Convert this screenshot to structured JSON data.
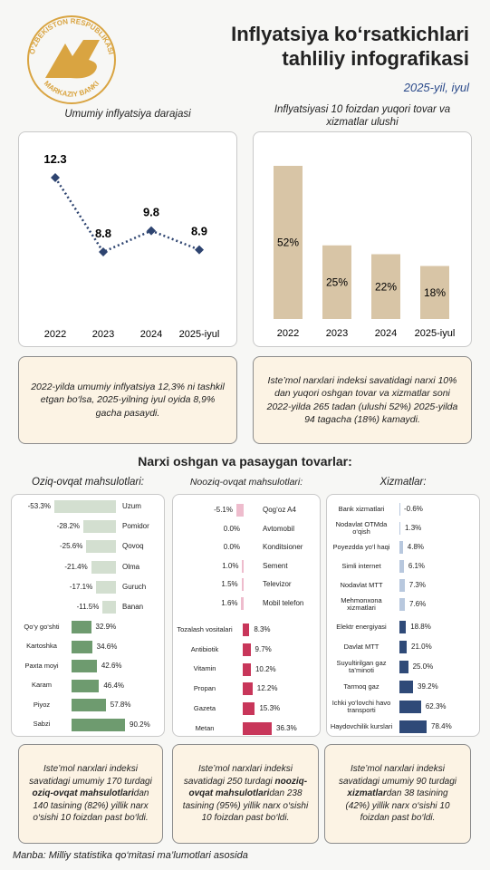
{
  "header": {
    "logo_top": "O‘ZBEKISTON RESPUBLIKASI",
    "logo_bottom": "MARKAZIY BANKI",
    "title_lines": [
      "Inflyatsiya ko‘rsatkichlari",
      "tahliliy infografikasi"
    ],
    "subtitle": "2025-yil, iyul"
  },
  "chart_data": [
    {
      "type": "line",
      "title": "Umumiy inflyatsiya darajasi",
      "categories": [
        "2022",
        "2023",
        "2024",
        "2025-iyul"
      ],
      "values": [
        12.3,
        8.8,
        9.8,
        8.9
      ],
      "color": "#2e4470"
    },
    {
      "type": "bar",
      "title": "Inflyatsiyasi 10 foizdan yuqori tovar va xizmatlar ulushi",
      "categories": [
        "2022",
        "2023",
        "2024",
        "2025-iyul"
      ],
      "values": [
        52,
        25,
        22,
        18
      ],
      "value_labels": [
        "52%",
        "25%",
        "22%",
        "18%"
      ],
      "color": "#d8c5a6"
    },
    {
      "type": "hbar",
      "title": "Oziq-ovqat mahsulotlari:",
      "series": [
        {
          "color": "#d3dfd0",
          "categories": [
            "Uzum",
            "Pomidor",
            "Qovoq",
            "Olma",
            "Guruch",
            "Banan"
          ],
          "values": [
            -53.3,
            -28.2,
            -25.6,
            -21.4,
            -17.1,
            -11.5
          ],
          "value_labels": [
            "-53.3%",
            "-28.2%",
            "-25.6%",
            "-21.4%",
            "-17.1%",
            "-11.5%"
          ]
        },
        {
          "color": "#6e9b6f",
          "categories": [
            "Qo‘y go‘shti",
            "Kartoshka",
            "Paxta moyi",
            "Karam",
            "Piyoz",
            "Sabzi"
          ],
          "values": [
            32.9,
            34.6,
            42.6,
            46.4,
            57.8,
            90.2
          ],
          "value_labels": [
            "32.9%",
            "34.6%",
            "42.6%",
            "46.4%",
            "57.8%",
            "90.2%"
          ]
        }
      ]
    },
    {
      "type": "hbar",
      "title": "Nooziq-ovqat mahsulotlari:",
      "series": [
        {
          "color": "#eebccd",
          "categories": [
            "Qog‘oz A4",
            "Avtomobil",
            "Konditsioner",
            "Sement",
            "Televizor",
            "Mobil telefon"
          ],
          "values": [
            -5.1,
            0.0,
            0.0,
            1.0,
            1.5,
            1.6
          ],
          "value_labels": [
            "-5.1%",
            "0.0%",
            "0.0%",
            "1.0%",
            "1.5%",
            "1.6%"
          ]
        },
        {
          "color": "#c8365a",
          "categories": [
            "Tozalash vositalari",
            "Antibiotik",
            "Vitamin",
            "Propan",
            "Gazeta",
            "Metan"
          ],
          "values": [
            8.3,
            9.7,
            10.2,
            12.2,
            15.3,
            36.3
          ],
          "value_labels": [
            "8.3%",
            "9.7%",
            "10.2%",
            "12.2%",
            "15.3%",
            "36.3%"
          ]
        }
      ]
    },
    {
      "type": "hbar",
      "title": "Xizmatlar:",
      "series": [
        {
          "color": "#b8c8de",
          "categories": [
            "Bank xizmatlari",
            "Nodavlat OTMda o‘qish",
            "Poyezdda yo‘l haqi",
            "Simli internet",
            "Nodavlat MTT",
            "Mehmonxona xizmatlari"
          ],
          "values": [
            -0.6,
            1.3,
            4.8,
            6.1,
            7.3,
            7.6
          ],
          "value_labels": [
            "-0.6%",
            "1.3%",
            "4.8%",
            "6.1%",
            "7.3%",
            "7.6%"
          ]
        },
        {
          "color": "#2f4a78",
          "categories": [
            "Elektr energiyasi",
            "Davlat MTT",
            "Suyultirilgan gaz ta’minoti",
            "Tarmoq gaz",
            "Ichki yo‘lovchi havo transporti",
            "Haydovchilik kurslari"
          ],
          "values": [
            18.8,
            21.0,
            25.0,
            39.2,
            62.3,
            78.4
          ],
          "value_labels": [
            "18.8%",
            "21.0%",
            "25.0%",
            "39.2%",
            "62.3%",
            "78.4%"
          ]
        }
      ]
    }
  ],
  "section_title": "Narxi oshgan va pasaygan tovarlar:",
  "notes": [
    {
      "parts": [
        {
          "text": "2022-yilda umumiy inflyatsiya 12,3% ni tashkil etgan bo‘lsa, 2025-yilning iyul oyida 8,9% gacha pasaydi."
        }
      ]
    },
    {
      "parts": [
        {
          "text": "Iste’mol narxlari indeksi savatidagi narxi 10% dan yuqori oshgan tovar va xizmatlar soni 2022-yilda 265 tadan (ulushi 52%) 2025-yilda 94 tagacha (18%) kamaydi."
        }
      ]
    },
    {
      "parts": [
        {
          "text": "Iste’mol narxlari indeksi savatidagi umumiy 170 turdagi "
        },
        {
          "text": "oziq-ovqat mahsulotlari",
          "bold": true
        },
        {
          "text": "dan 140 tasining (82%) yillik narx o‘sishi 10 foizdan past bo‘ldi."
        }
      ]
    },
    {
      "parts": [
        {
          "text": "Iste’mol narxlari indeksi savatidagi 250 turdagi "
        },
        {
          "text": "nooziq-ovqat mahsulotlari",
          "bold": true
        },
        {
          "text": "dan 238 tasining (95%) yillik narx o‘sishi 10 foizdan past bo‘ldi."
        }
      ]
    },
    {
      "parts": [
        {
          "text": "Iste’mol narxlari indeksi savatidagi umumiy 90 turdagi "
        },
        {
          "text": "xizmatlar",
          "bold": true
        },
        {
          "text": "dan 38 tasining (42%) yillik narx o‘sishi 10 foizdan past bo‘ldi."
        }
      ]
    }
  ],
  "source": "Manba: Milliy statistika qo‘mitasi ma’lumotlari asosida"
}
